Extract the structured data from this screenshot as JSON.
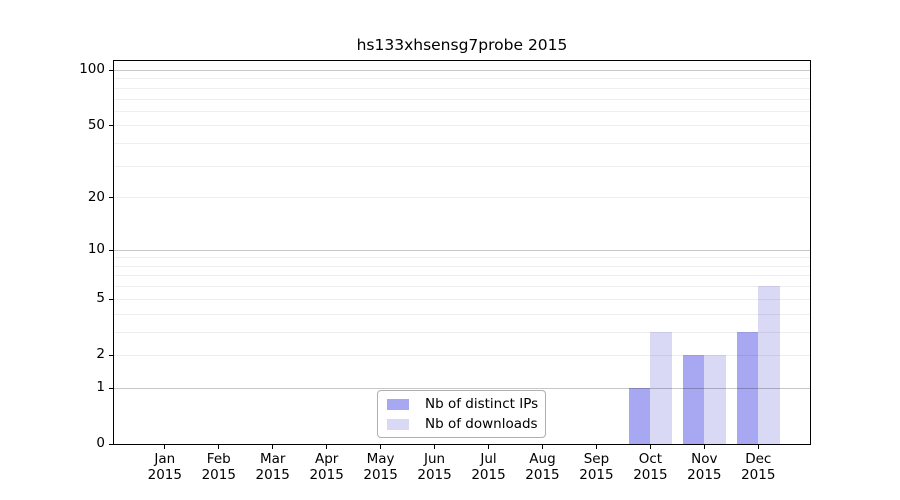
{
  "title": "hs133xhsensg7probe 2015",
  "legend": {
    "items": [
      {
        "label": "Nb of distinct IPs",
        "color": "#a7a7f2"
      },
      {
        "label": "Nb of downloads",
        "color": "#d9d9f6"
      }
    ]
  },
  "axes": {
    "x_months": [
      "Jan",
      "Feb",
      "Mar",
      "Apr",
      "May",
      "Jun",
      "Jul",
      "Aug",
      "Sep",
      "Oct",
      "Nov",
      "Dec"
    ],
    "x_year": "2015",
    "y_tick_labels": [
      "0",
      "1",
      "2",
      "5",
      "10",
      "20",
      "50",
      "100"
    ]
  },
  "chart_data": {
    "type": "bar",
    "title": "hs133xhsensg7probe 2015",
    "categories": [
      "Jan 2015",
      "Feb 2015",
      "Mar 2015",
      "Apr 2015",
      "May 2015",
      "Jun 2015",
      "Jul 2015",
      "Aug 2015",
      "Sep 2015",
      "Oct 2015",
      "Nov 2015",
      "Dec 2015"
    ],
    "series": [
      {
        "name": "Nb of distinct IPs",
        "color": "#a7a7f2",
        "values": [
          0,
          0,
          0,
          0,
          0,
          0,
          0,
          0,
          0,
          1,
          2,
          3
        ]
      },
      {
        "name": "Nb of downloads",
        "color": "#d9d9f6",
        "values": [
          0,
          0,
          0,
          0,
          0,
          0,
          0,
          0,
          0,
          3,
          2,
          6
        ]
      }
    ],
    "xlabel": "",
    "ylabel": "",
    "yscale": "log10(1+v)",
    "ylim": [
      0,
      113
    ],
    "yticks": [
      0,
      1,
      2,
      5,
      10,
      20,
      50,
      100
    ],
    "grid": true,
    "grid_major": [
      1,
      10,
      100
    ],
    "grid_minor": [
      2,
      3,
      4,
      5,
      6,
      7,
      8,
      9,
      20,
      30,
      40,
      50,
      60,
      70,
      80,
      90
    ],
    "legend_position": "lower center"
  },
  "colors": {
    "bar_distinct_ips": "#a7a7f2",
    "bar_downloads": "#d9d9f6",
    "grid_major": "rgba(0,0,0,0.22)",
    "grid_minor": "rgba(0,0,0,0.065)",
    "spine": "#000000"
  }
}
